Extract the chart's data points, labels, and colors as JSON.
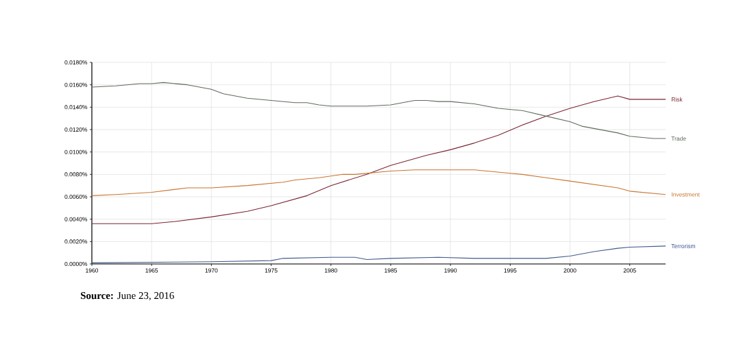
{
  "chart_data": {
    "type": "line",
    "xlim": [
      1960,
      2008
    ],
    "xticks": [
      1960,
      1965,
      1970,
      1975,
      1980,
      1985,
      1990,
      1995,
      2000,
      2005
    ],
    "ylim": [
      0,
      0.018
    ],
    "yticks": [
      {
        "value": 0,
        "label": "0.0000%"
      },
      {
        "value": 0.002,
        "label": "0.0020%"
      },
      {
        "value": 0.004,
        "label": "0.0040%"
      },
      {
        "value": 0.006,
        "label": "0.0060%"
      },
      {
        "value": 0.008,
        "label": "0.0080%"
      },
      {
        "value": 0.01,
        "label": "0.0100%"
      },
      {
        "value": 0.012,
        "label": "0.0120%"
      },
      {
        "value": 0.014,
        "label": "0.0140%"
      },
      {
        "value": 0.016,
        "label": "0.0160%"
      },
      {
        "value": 0.018,
        "label": "0.0180%"
      }
    ],
    "grid": true,
    "legend": false,
    "marker": "none",
    "line_style": "solid",
    "series": [
      {
        "name": "Risk",
        "color": "#7a2430",
        "x": [
          1960,
          1965,
          1967,
          1970,
          1973,
          1975,
          1978,
          1980,
          1983,
          1985,
          1988,
          1990,
          1992,
          1994,
          1996,
          1998,
          2000,
          2002,
          2004,
          2005,
          2008
        ],
        "values": [
          0.0036,
          0.0036,
          0.0038,
          0.0042,
          0.0047,
          0.0052,
          0.0061,
          0.007,
          0.008,
          0.0088,
          0.0097,
          0.0102,
          0.0108,
          0.0115,
          0.0124,
          0.0132,
          0.0139,
          0.0145,
          0.015,
          0.0147,
          0.0147
        ]
      },
      {
        "name": "Trade",
        "color": "#5d6b5a",
        "x": [
          1960,
          1962,
          1964,
          1965,
          1966,
          1968,
          1970,
          1971,
          1973,
          1975,
          1977,
          1978,
          1979,
          1980,
          1983,
          1985,
          1987,
          1988,
          1989,
          1990,
          1992,
          1994,
          1996,
          1998,
          2000,
          2001,
          2003,
          2004,
          2005,
          2007,
          2008
        ],
        "values": [
          0.0158,
          0.0159,
          0.0161,
          0.0161,
          0.0162,
          0.016,
          0.0156,
          0.0152,
          0.0148,
          0.0146,
          0.0144,
          0.0144,
          0.0142,
          0.0141,
          0.0141,
          0.0142,
          0.0146,
          0.0146,
          0.0145,
          0.0145,
          0.0143,
          0.0139,
          0.0137,
          0.0132,
          0.0127,
          0.0123,
          0.0119,
          0.0117,
          0.0114,
          0.0112,
          0.0112
        ]
      },
      {
        "name": "Investment",
        "color": "#c8742e",
        "x": [
          1960,
          1962,
          1965,
          1968,
          1970,
          1973,
          1975,
          1976,
          1977,
          1979,
          1981,
          1982,
          1985,
          1987,
          1990,
          1992,
          1995,
          1996,
          1998,
          2000,
          2002,
          2004,
          2005,
          2008
        ],
        "values": [
          0.0061,
          0.0062,
          0.0064,
          0.0068,
          0.0068,
          0.007,
          0.0072,
          0.0073,
          0.0075,
          0.0077,
          0.008,
          0.008,
          0.0083,
          0.0084,
          0.0084,
          0.0084,
          0.0081,
          0.008,
          0.0077,
          0.0074,
          0.0071,
          0.0068,
          0.0065,
          0.0062
        ]
      },
      {
        "name": "Terrorism",
        "color": "#3f5a8a",
        "x": [
          1960,
          1970,
          1975,
          1976,
          1980,
          1982,
          1983,
          1985,
          1989,
          1992,
          1995,
          1998,
          2000,
          2002,
          2004,
          2005,
          2008
        ],
        "values": [
          0.0001,
          0.0002,
          0.0003,
          0.0005,
          0.0006,
          0.0006,
          0.0004,
          0.0005,
          0.0006,
          0.0005,
          0.0005,
          0.0005,
          0.0007,
          0.0011,
          0.0014,
          0.0015,
          0.0016
        ]
      }
    ],
    "annotations": [
      "**Source:** June 23, 2016"
    ]
  }
}
